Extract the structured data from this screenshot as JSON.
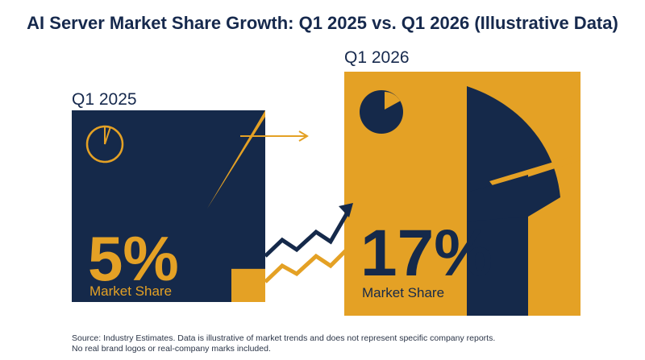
{
  "title": "AI Server Market Share Growth: Q1 2025 vs. Q1 2026 (Illustrative Data)",
  "colors": {
    "navy": "#15294a",
    "gold": "#e4a125",
    "background": "#ffffff"
  },
  "chart_data": {
    "type": "bar",
    "title": "AI Server Market Share Growth: Q1 2025 vs. Q1 2026 (Illustrative Data)",
    "categories": [
      "Q1 2025",
      "Q1 2026"
    ],
    "values": [
      5,
      17
    ],
    "unit": "%",
    "data_labels": [
      "5%",
      "17%"
    ],
    "value_caption": "Market Share",
    "xlabel": "",
    "ylabel": "",
    "grid": false,
    "legend": "none"
  },
  "panels": [
    {
      "period": "Q1 2025",
      "value_text": "5%",
      "caption": "Market Share",
      "icon": "pie-chart-icon"
    },
    {
      "period": "Q1 2026",
      "value_text": "17%",
      "caption": "Market Share",
      "icon": "pie-chart-icon"
    }
  ],
  "icons": {
    "growth_arrow": "trend-up-arrow-icon",
    "right_arrow": "arrow-right-icon"
  },
  "footer": {
    "line1": "Source: Industry Estimates. Data is illustrative of market trends and does not represent specific company reports.",
    "line2": "No real brand logos or real-company marks included."
  }
}
